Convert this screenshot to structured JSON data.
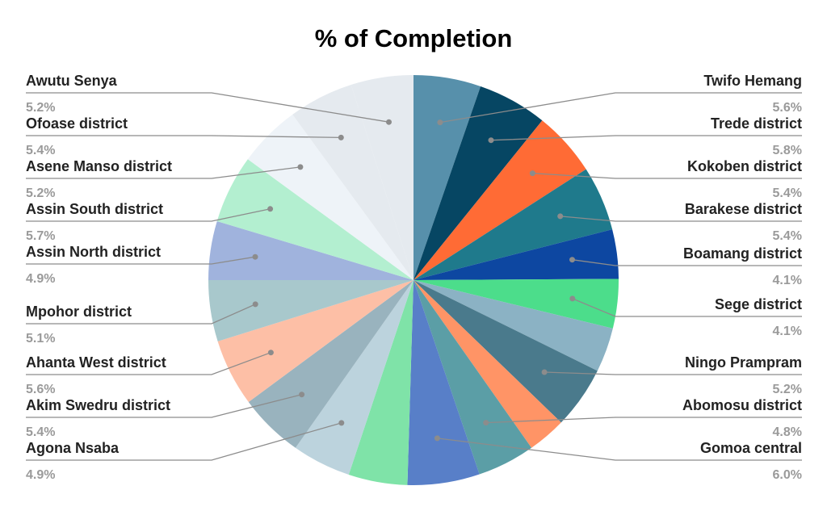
{
  "chart_data": {
    "type": "pie",
    "title": "% of Completion",
    "slices": [
      {
        "label": "Twifo Hemang",
        "value": 5.6,
        "display": "5.6%",
        "color": "#5790ab"
      },
      {
        "label": "Trede district",
        "value": 5.8,
        "display": "5.8%",
        "color": "#064663"
      },
      {
        "label": "Kokoben district",
        "value": 5.4,
        "display": "5.4%",
        "color": "#ff6b35"
      },
      {
        "label": "Barakese district",
        "value": 5.4,
        "display": "5.4%",
        "color": "#1f7a8c"
      },
      {
        "label": "Boamang district",
        "value": 4.1,
        "display": "4.1%",
        "color": "#0d47a1"
      },
      {
        "label": "Sege district",
        "value": 4.1,
        "display": "4.1%",
        "color": "#4cdd8b"
      },
      {
        "label": "",
        "value": 3.7,
        "display": "",
        "color": "#8bb2c4"
      },
      {
        "label": "Ningo Prampram",
        "value": 5.2,
        "display": "5.2%",
        "color": "#4a7a8c"
      },
      {
        "label": "",
        "value": 3.2,
        "display": "",
        "color": "#ff9466"
      },
      {
        "label": "Abomosu district",
        "value": 4.8,
        "display": "4.8%",
        "color": "#5b9ea6"
      },
      {
        "label": "Gomoa central",
        "value": 6.0,
        "display": "6.0%",
        "color": "#587fc8"
      },
      {
        "label": "",
        "value": 4.9,
        "display": "",
        "color": "#7fe3a8"
      },
      {
        "label": "Agona Nsaba",
        "value": 4.9,
        "display": "4.9%",
        "color": "#bcd3dd"
      },
      {
        "label": "Akim Swedru district",
        "value": 5.4,
        "display": "5.4%",
        "color": "#99b3be"
      },
      {
        "label": "Ahanta West district",
        "value": 5.6,
        "display": "5.6%",
        "color": "#fdbfa6"
      },
      {
        "label": "Mpohor district",
        "value": 5.1,
        "display": "5.1%",
        "color": "#a8c8cc"
      },
      {
        "label": "Assin North district",
        "value": 4.9,
        "display": "4.9%",
        "color": "#a0b3dd"
      },
      {
        "label": "Assin South district",
        "value": 5.7,
        "display": "5.7%",
        "color": "#b3efd0"
      },
      {
        "label": "Asene Manso district",
        "value": 5.2,
        "display": "5.2%",
        "color": "#eef3f8"
      },
      {
        "label": "Ofoase district",
        "value": 5.4,
        "display": "5.4%",
        "color": "#e5eaef"
      },
      {
        "label": "Awutu Senya",
        "value": 5.2,
        "display": "5.2%",
        "color": "#e5eaef"
      }
    ],
    "legend": "none"
  }
}
